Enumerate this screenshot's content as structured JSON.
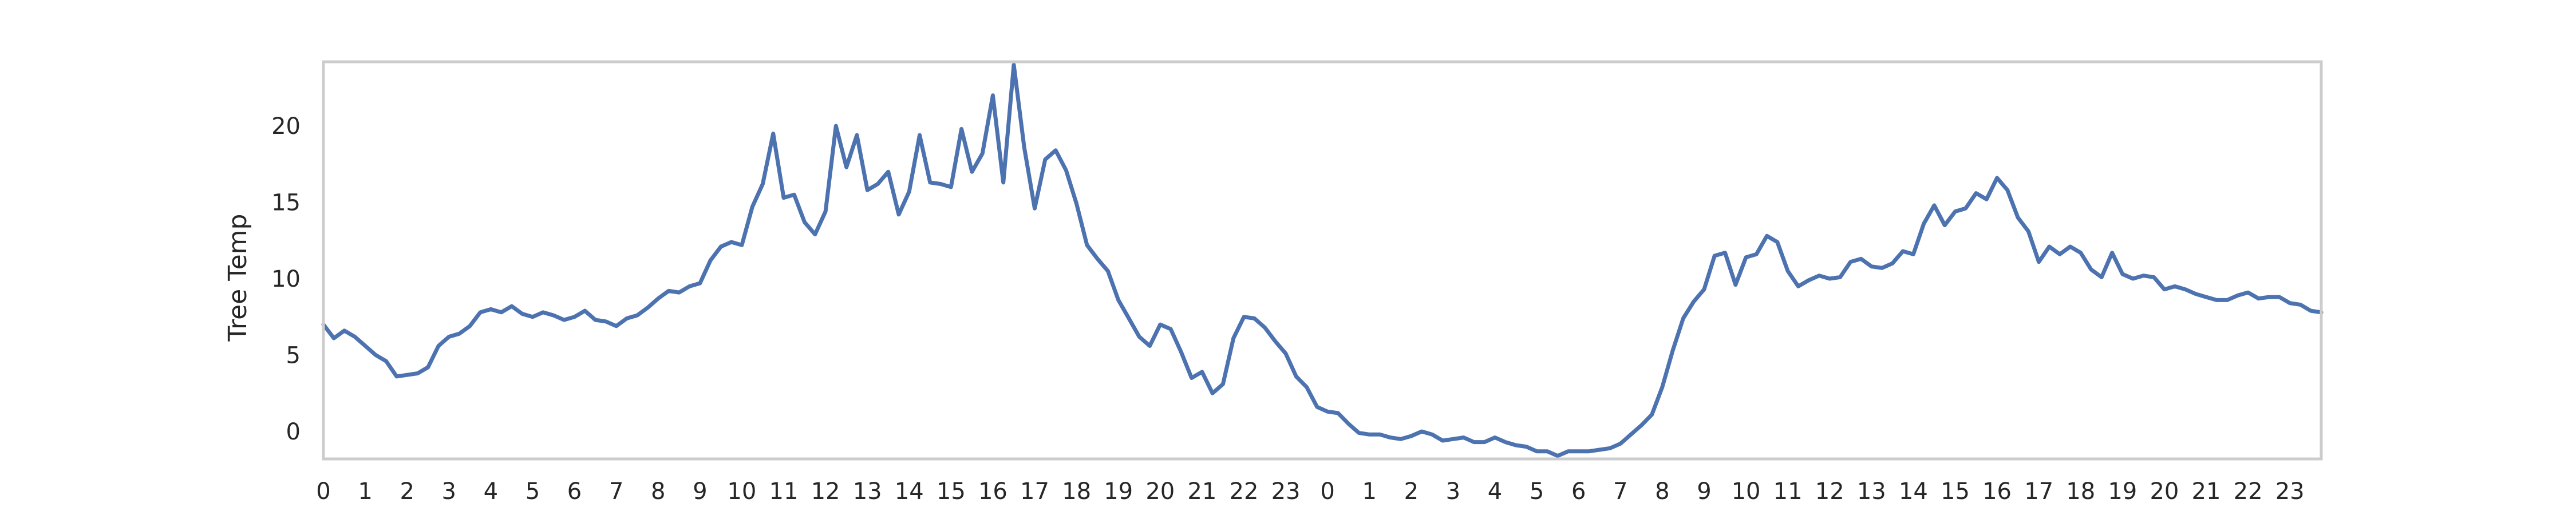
{
  "chart_data": {
    "type": "line",
    "title": "",
    "xlabel": "",
    "ylabel": "Tree Temp",
    "grid": false,
    "color": "#4C72B0",
    "ylim": [
      -1.8,
      24.2
    ],
    "yticks": [
      0,
      5,
      10,
      15,
      20
    ],
    "xticks": [
      "0",
      "1",
      "2",
      "3",
      "4",
      "5",
      "6",
      "7",
      "8",
      "9",
      "10",
      "11",
      "12",
      "13",
      "14",
      "15",
      "16",
      "17",
      "18",
      "19",
      "20",
      "21",
      "22",
      "23",
      "0",
      "1",
      "2",
      "3",
      "4",
      "5",
      "6",
      "7",
      "8",
      "9",
      "10",
      "11",
      "12",
      "13",
      "14",
      "15",
      "16",
      "17",
      "18",
      "19",
      "20",
      "21",
      "22",
      "23"
    ],
    "x_step_hours": 0.25,
    "series": [
      {
        "values": [
          7.0,
          6.1,
          6.6,
          6.2,
          5.6,
          5.0,
          4.6,
          3.6,
          3.7,
          3.8,
          4.2,
          5.6,
          6.2,
          6.4,
          6.9,
          7.8,
          8.0,
          7.8,
          8.2,
          7.7,
          7.5,
          7.8,
          7.6,
          7.3,
          7.5,
          7.9,
          7.3,
          7.2,
          6.9,
          7.4,
          7.6,
          8.1,
          8.7,
          9.2,
          9.1,
          9.5,
          9.7,
          11.2,
          12.1,
          12.4,
          12.2,
          14.7,
          16.2,
          19.5,
          15.3,
          15.5,
          13.7,
          12.9,
          14.4,
          20.0,
          17.3,
          19.4,
          15.8,
          16.2,
          17.0,
          14.2,
          15.7,
          19.4,
          16.3,
          16.2,
          16.0,
          19.8,
          17.0,
          18.2,
          22.0,
          16.3,
          24.0,
          18.6,
          14.6,
          17.8,
          18.4,
          17.1,
          14.9,
          12.2,
          11.3,
          10.5,
          8.6,
          7.4,
          6.2,
          5.6,
          7.0,
          6.7,
          5.2,
          3.5,
          3.9,
          2.5,
          3.1,
          6.1,
          7.5,
          7.4,
          6.8,
          5.9,
          5.1,
          3.6,
          2.9,
          1.6,
          1.3,
          1.2,
          0.5,
          -0.1,
          -0.2,
          -0.2,
          -0.4,
          -0.5,
          -0.3,
          0.0,
          -0.2,
          -0.6,
          -0.5,
          -0.4,
          -0.7,
          -0.7,
          -0.4,
          -0.7,
          -0.9,
          -1.0,
          -1.3,
          -1.3,
          -1.6,
          -1.3,
          -1.3,
          -1.3,
          -1.2,
          -1.1,
          -0.8,
          -0.2,
          0.4,
          1.1,
          2.9,
          5.3,
          7.4,
          8.5,
          9.3,
          11.5,
          11.7,
          9.6,
          11.4,
          11.6,
          12.8,
          12.4,
          10.5,
          9.5,
          9.9,
          10.2,
          10.0,
          10.1,
          11.1,
          11.3,
          10.8,
          10.7,
          11.0,
          11.8,
          11.6,
          13.6,
          14.8,
          13.5,
          14.4,
          14.6,
          15.6,
          15.2,
          16.6,
          15.8,
          14.0,
          13.1,
          11.1,
          12.1,
          11.6,
          12.1,
          11.7,
          10.6,
          10.1,
          11.7,
          10.3,
          10.0,
          10.2,
          10.1,
          9.3,
          9.5,
          9.3,
          9.0,
          8.8,
          8.6,
          8.6,
          8.9,
          9.1,
          8.7,
          8.8,
          8.8,
          8.4,
          8.3,
          7.9,
          7.8
        ]
      }
    ]
  }
}
